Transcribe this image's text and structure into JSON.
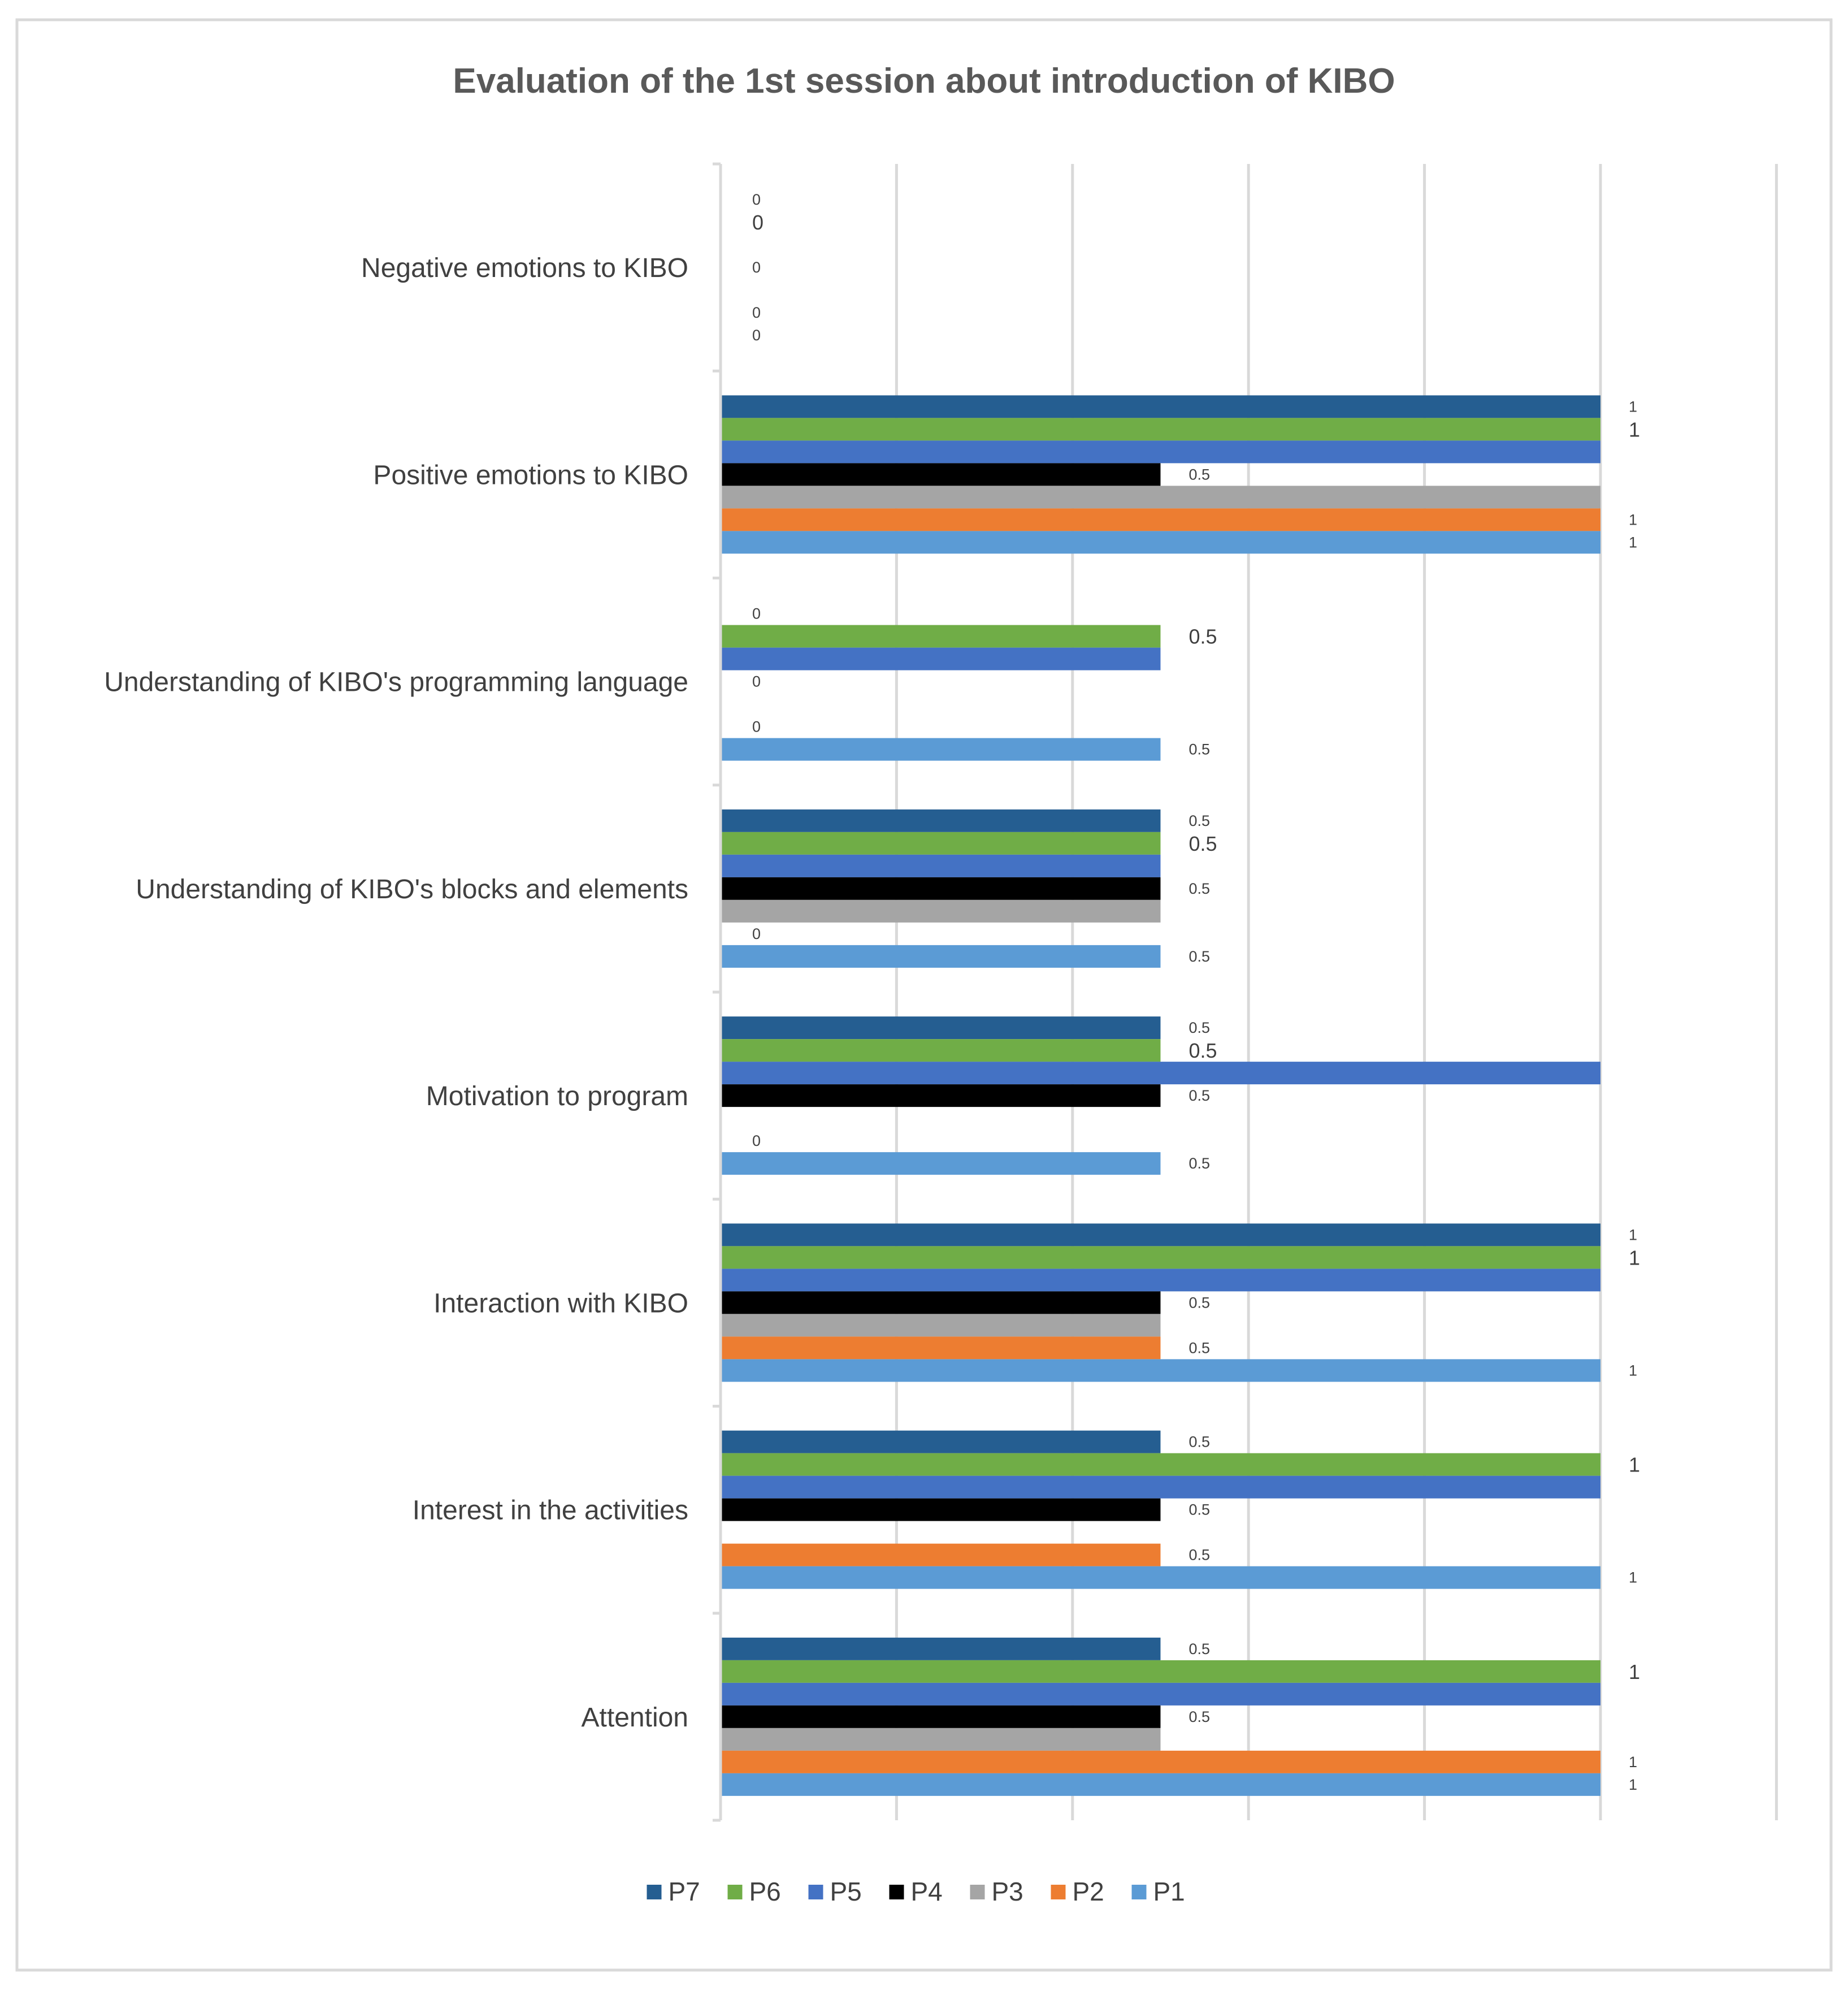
{
  "chart_data": {
    "type": "bar",
    "orientation": "horizontal",
    "title": "Evaluation of the 1st session about introduction of KIBO",
    "xlabel": "",
    "ylabel": "",
    "xlim": [
      0,
      1.2
    ],
    "grid": true,
    "legend_position": "bottom",
    "categories": [
      "Negative emotions to KIBO",
      "Positive emotions to KIBO",
      "Understanding of KIBO's programming language",
      "Understanding of KIBO's blocks and elements",
      "Motivation to program",
      "Interaction with KIBO",
      "Interest in the activities",
      "Attention"
    ],
    "series": [
      {
        "name": "P7",
        "color": "#255E91",
        "values": [
          0,
          1,
          0,
          0.5,
          0.5,
          1,
          0.5,
          0.5
        ],
        "labels": [
          "0",
          "1",
          "0",
          "0.5",
          "0.5",
          "1",
          "0.5",
          "0.5"
        ]
      },
      {
        "name": "P6",
        "color": "#70AD47",
        "values": [
          0,
          1,
          0.5,
          0.5,
          0.5,
          1,
          1,
          1
        ],
        "labels": [
          "0",
          "1",
          "0.5",
          "0.5",
          "0.5",
          "1",
          "1",
          "1"
        ]
      },
      {
        "name": "P5",
        "color": "#4472C4",
        "values": [
          0,
          1,
          0.5,
          0.5,
          1,
          1,
          1,
          1
        ],
        "labels": [
          "",
          "",
          "",
          "",
          "",
          "",
          "",
          ""
        ]
      },
      {
        "name": "P4",
        "color": "#000000",
        "values": [
          0,
          0.5,
          0,
          0.5,
          0.5,
          0.5,
          0.5,
          0.5
        ],
        "labels": [
          "0",
          "0.5",
          "0",
          "0.5",
          "0.5",
          "0.5",
          "0.5",
          "0.5"
        ]
      },
      {
        "name": "P3",
        "color": "#A5A5A5",
        "values": [
          0,
          1,
          0,
          0.5,
          0,
          0.5,
          0,
          0.5
        ],
        "labels": [
          "",
          "",
          "",
          "",
          "",
          "",
          "",
          ""
        ]
      },
      {
        "name": "P2",
        "color": "#ED7D31",
        "values": [
          0,
          1,
          0,
          0,
          0,
          0.5,
          0.5,
          1
        ],
        "labels": [
          "0",
          "1",
          "0",
          "0",
          "0",
          "0.5",
          "0.5",
          "1"
        ]
      },
      {
        "name": "P1",
        "color": "#5B9BD5",
        "values": [
          0,
          1,
          0.5,
          0.5,
          0.5,
          1,
          1,
          1
        ],
        "labels": [
          "0",
          "1",
          "0.5",
          "0.5",
          "0.5",
          "1",
          "1",
          "1"
        ]
      }
    ]
  }
}
